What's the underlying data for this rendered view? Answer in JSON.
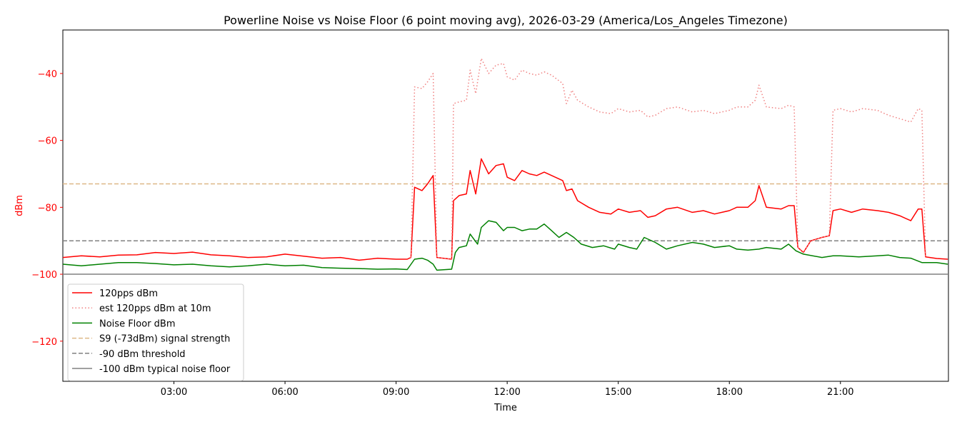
{
  "chart_data": {
    "type": "line",
    "title": "Powerline Noise vs Noise Floor (6 point moving avg), 2026-03-29 (America/Los_Angeles Timezone)",
    "xlabel": "Time",
    "ylabel": "dBm",
    "xlim": [
      "00:00",
      "23:55"
    ],
    "ylim": [
      -132,
      -27
    ],
    "xticks": [
      {
        "label": "03:00",
        "hour": 3
      },
      {
        "label": "06:00",
        "hour": 6
      },
      {
        "label": "09:00",
        "hour": 9
      },
      {
        "label": "12:00",
        "hour": 12
      },
      {
        "label": "15:00",
        "hour": 15
      },
      {
        "label": "18:00",
        "hour": 18
      },
      {
        "label": "21:00",
        "hour": 21
      }
    ],
    "yticks": [
      {
        "label": "−40",
        "value": -40
      },
      {
        "label": "−60",
        "value": -60
      },
      {
        "label": "−80",
        "value": -80
      },
      {
        "label": "−100",
        "value": -100
      },
      {
        "label": "−120",
        "value": -120
      }
    ],
    "legend_position": "lower-left",
    "grid": false,
    "series": [
      {
        "name": "120pps dBm",
        "color": "#ff0000",
        "style": "solid",
        "points": [
          [
            0,
            -95
          ],
          [
            0.5,
            -94.5
          ],
          [
            1,
            -94.8
          ],
          [
            1.5,
            -94.3
          ],
          [
            2,
            -94.2
          ],
          [
            2.5,
            -93.5
          ],
          [
            3,
            -93.8
          ],
          [
            3.5,
            -93.4
          ],
          [
            4,
            -94.2
          ],
          [
            4.5,
            -94.5
          ],
          [
            5,
            -95
          ],
          [
            5.5,
            -94.8
          ],
          [
            6,
            -94
          ],
          [
            6.5,
            -94.6
          ],
          [
            7,
            -95.2
          ],
          [
            7.5,
            -95
          ],
          [
            8,
            -95.8
          ],
          [
            8.5,
            -95.2
          ],
          [
            9,
            -95.5
          ],
          [
            9.3,
            -95.5
          ],
          [
            9.4,
            -95
          ],
          [
            9.5,
            -74
          ],
          [
            9.7,
            -75
          ],
          [
            9.85,
            -73
          ],
          [
            10,
            -70.5
          ],
          [
            10.1,
            -95
          ],
          [
            10.5,
            -95.5
          ],
          [
            10.55,
            -78
          ],
          [
            10.7,
            -76.5
          ],
          [
            10.9,
            -76
          ],
          [
            11,
            -69
          ],
          [
            11.15,
            -76
          ],
          [
            11.3,
            -65.5
          ],
          [
            11.5,
            -70
          ],
          [
            11.7,
            -67.5
          ],
          [
            11.9,
            -67
          ],
          [
            12,
            -71
          ],
          [
            12.2,
            -72
          ],
          [
            12.4,
            -69
          ],
          [
            12.6,
            -70
          ],
          [
            12.8,
            -70.5
          ],
          [
            13,
            -69.5
          ],
          [
            13.2,
            -70.5
          ],
          [
            13.5,
            -72
          ],
          [
            13.6,
            -75
          ],
          [
            13.75,
            -74.5
          ],
          [
            13.9,
            -78
          ],
          [
            14.2,
            -80
          ],
          [
            14.5,
            -81.5
          ],
          [
            14.8,
            -82
          ],
          [
            15,
            -80.5
          ],
          [
            15.3,
            -81.5
          ],
          [
            15.6,
            -81
          ],
          [
            15.8,
            -83
          ],
          [
            16,
            -82.5
          ],
          [
            16.3,
            -80.5
          ],
          [
            16.6,
            -80
          ],
          [
            17,
            -81.5
          ],
          [
            17.3,
            -81
          ],
          [
            17.6,
            -82
          ],
          [
            18,
            -81
          ],
          [
            18.2,
            -80
          ],
          [
            18.5,
            -80
          ],
          [
            18.7,
            -78
          ],
          [
            18.8,
            -73.5
          ],
          [
            19,
            -80
          ],
          [
            19.4,
            -80.5
          ],
          [
            19.6,
            -79.5
          ],
          [
            19.75,
            -79.5
          ],
          [
            19.85,
            -92
          ],
          [
            20,
            -93.5
          ],
          [
            20.2,
            -90
          ],
          [
            20.5,
            -89
          ],
          [
            20.7,
            -88.5
          ],
          [
            20.8,
            -81
          ],
          [
            21,
            -80.5
          ],
          [
            21.3,
            -81.5
          ],
          [
            21.6,
            -80.5
          ],
          [
            22,
            -81
          ],
          [
            22.3,
            -81.5
          ],
          [
            22.6,
            -82.5
          ],
          [
            22.9,
            -84
          ],
          [
            23.1,
            -80.5
          ],
          [
            23.2,
            -80.5
          ],
          [
            23.3,
            -94.8
          ],
          [
            23.6,
            -95.3
          ],
          [
            23.9,
            -95.5
          ]
        ]
      },
      {
        "name": "est 120pps dBm at 10m",
        "color": "#f08080",
        "style": "dotted",
        "points": [
          [
            9.4,
            -95
          ],
          [
            9.5,
            -44
          ],
          [
            9.7,
            -44.5
          ],
          [
            9.85,
            -42.5
          ],
          [
            10,
            -40
          ],
          [
            10.1,
            -95
          ],
          [
            10.5,
            -95.5
          ],
          [
            10.55,
            -49
          ],
          [
            10.7,
            -48.5
          ],
          [
            10.9,
            -48
          ],
          [
            11,
            -39
          ],
          [
            11.15,
            -46
          ],
          [
            11.3,
            -35.5
          ],
          [
            11.5,
            -40
          ],
          [
            11.7,
            -37.5
          ],
          [
            11.9,
            -37
          ],
          [
            12,
            -41
          ],
          [
            12.2,
            -42
          ],
          [
            12.4,
            -39
          ],
          [
            12.6,
            -40
          ],
          [
            12.8,
            -40.5
          ],
          [
            13,
            -39.5
          ],
          [
            13.2,
            -40.5
          ],
          [
            13.5,
            -43
          ],
          [
            13.6,
            -49
          ],
          [
            13.75,
            -45
          ],
          [
            13.9,
            -48
          ],
          [
            14.2,
            -50
          ],
          [
            14.5,
            -51.5
          ],
          [
            14.8,
            -52
          ],
          [
            15,
            -50.5
          ],
          [
            15.3,
            -51.5
          ],
          [
            15.6,
            -51
          ],
          [
            15.8,
            -53
          ],
          [
            16,
            -52.5
          ],
          [
            16.3,
            -50.5
          ],
          [
            16.6,
            -50
          ],
          [
            17,
            -51.5
          ],
          [
            17.3,
            -51
          ],
          [
            17.6,
            -52
          ],
          [
            18,
            -51
          ],
          [
            18.2,
            -50
          ],
          [
            18.5,
            -50
          ],
          [
            18.7,
            -48
          ],
          [
            18.8,
            -43.5
          ],
          [
            19,
            -50
          ],
          [
            19.4,
            -50.5
          ],
          [
            19.6,
            -49.5
          ],
          [
            19.75,
            -50
          ],
          [
            19.85,
            -92
          ],
          [
            20,
            -93.5
          ],
          [
            20.2,
            -90
          ],
          [
            20.5,
            -89
          ],
          [
            20.7,
            -88.5
          ],
          [
            20.8,
            -51
          ],
          [
            21,
            -50.5
          ],
          [
            21.3,
            -51.5
          ],
          [
            21.6,
            -50.5
          ],
          [
            22,
            -51
          ],
          [
            22.3,
            -52.5
          ],
          [
            22.6,
            -53.5
          ],
          [
            22.9,
            -54.5
          ],
          [
            23.1,
            -50.5
          ],
          [
            23.2,
            -51
          ],
          [
            23.3,
            -94.8
          ]
        ]
      },
      {
        "name": "Noise Floor dBm",
        "color": "#008000",
        "style": "solid",
        "points": [
          [
            0,
            -97
          ],
          [
            0.5,
            -97.5
          ],
          [
            1,
            -97
          ],
          [
            1.5,
            -96.5
          ],
          [
            2,
            -96.5
          ],
          [
            2.5,
            -96.8
          ],
          [
            3,
            -97.2
          ],
          [
            3.5,
            -97
          ],
          [
            4,
            -97.5
          ],
          [
            4.5,
            -97.8
          ],
          [
            5,
            -97.5
          ],
          [
            5.5,
            -97
          ],
          [
            6,
            -97.5
          ],
          [
            6.5,
            -97.3
          ],
          [
            7,
            -98
          ],
          [
            7.5,
            -98.2
          ],
          [
            8,
            -98.3
          ],
          [
            8.5,
            -98.5
          ],
          [
            9,
            -98.4
          ],
          [
            9.3,
            -98.6
          ],
          [
            9.5,
            -95.5
          ],
          [
            9.7,
            -95.2
          ],
          [
            9.85,
            -95.8
          ],
          [
            10,
            -97
          ],
          [
            10.1,
            -98.8
          ],
          [
            10.5,
            -98.5
          ],
          [
            10.6,
            -93.5
          ],
          [
            10.7,
            -92
          ],
          [
            10.9,
            -91.5
          ],
          [
            11,
            -88
          ],
          [
            11.2,
            -91
          ],
          [
            11.3,
            -86
          ],
          [
            11.5,
            -84
          ],
          [
            11.7,
            -84.5
          ],
          [
            11.9,
            -87
          ],
          [
            12,
            -86
          ],
          [
            12.2,
            -86
          ],
          [
            12.4,
            -87
          ],
          [
            12.6,
            -86.5
          ],
          [
            12.8,
            -86.5
          ],
          [
            13,
            -85
          ],
          [
            13.2,
            -87
          ],
          [
            13.4,
            -89
          ],
          [
            13.6,
            -87.5
          ],
          [
            13.8,
            -89
          ],
          [
            14,
            -91
          ],
          [
            14.3,
            -92
          ],
          [
            14.6,
            -91.5
          ],
          [
            14.9,
            -92.5
          ],
          [
            15,
            -91
          ],
          [
            15.3,
            -92
          ],
          [
            15.5,
            -92.5
          ],
          [
            15.7,
            -89
          ],
          [
            16,
            -90.5
          ],
          [
            16.3,
            -92.5
          ],
          [
            16.6,
            -91.5
          ],
          [
            17,
            -90.5
          ],
          [
            17.3,
            -91
          ],
          [
            17.6,
            -92
          ],
          [
            18,
            -91.5
          ],
          [
            18.2,
            -92.5
          ],
          [
            18.5,
            -92.8
          ],
          [
            18.8,
            -92.5
          ],
          [
            19,
            -92
          ],
          [
            19.4,
            -92.5
          ],
          [
            19.6,
            -91
          ],
          [
            19.8,
            -93
          ],
          [
            20,
            -94
          ],
          [
            20.5,
            -95
          ],
          [
            20.8,
            -94.5
          ],
          [
            21,
            -94.5
          ],
          [
            21.5,
            -94.8
          ],
          [
            22,
            -94.5
          ],
          [
            22.3,
            -94.3
          ],
          [
            22.6,
            -95
          ],
          [
            22.9,
            -95.2
          ],
          [
            23.2,
            -96.5
          ],
          [
            23.6,
            -96.5
          ],
          [
            23.9,
            -97
          ]
        ]
      }
    ],
    "reference_lines": [
      {
        "name": "S9 (-73dBm) signal strength",
        "value": -73,
        "color": "#deb887",
        "style": "dashed"
      },
      {
        "name": "-90 dBm threshold",
        "value": -90,
        "color": "#808080",
        "style": "dashed"
      },
      {
        "name": "-100 dBm typical noise floor",
        "value": -100,
        "color": "#808080",
        "style": "solid"
      }
    ],
    "ylabel_color": "#ff0000"
  }
}
